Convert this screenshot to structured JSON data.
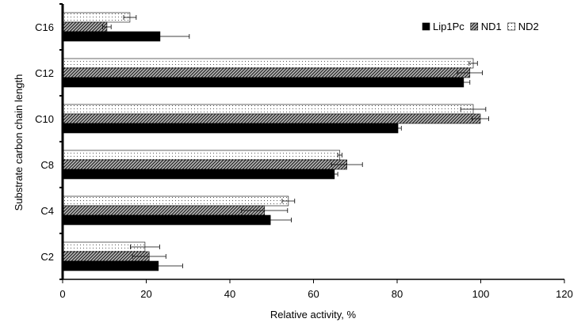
{
  "chart_data": {
    "type": "bar",
    "orientation": "horizontal",
    "title": "",
    "xlabel": "Relative activity, %",
    "ylabel": "Substrate carbon chain length",
    "xlim": [
      0,
      120
    ],
    "xticks": [
      0,
      20,
      40,
      60,
      80,
      100,
      120
    ],
    "grid": false,
    "legend_position": "top-right",
    "categories": [
      "C16",
      "C12",
      "C10",
      "C8",
      "C4",
      "C2"
    ],
    "series": [
      {
        "name": "Lip1Pc",
        "color": "#000000",
        "pattern": "solid",
        "values": [
          23.3,
          95.9,
          80.2,
          65.0,
          49.7,
          22.9
        ],
        "errors": [
          7.0,
          1.5,
          0.8,
          0.8,
          5.0,
          5.8
        ]
      },
      {
        "name": "ND1",
        "color": "#555555",
        "pattern": "hatch",
        "values": [
          10.6,
          97.4,
          99.9,
          68.0,
          48.3,
          20.7
        ],
        "errors": [
          1.0,
          3.0,
          2.0,
          3.7,
          5.5,
          4.0
        ]
      },
      {
        "name": "ND2",
        "color": "#ffffff",
        "pattern": "dots",
        "values": [
          16.1,
          98.2,
          98.2,
          66.3,
          54.0,
          19.7
        ],
        "errors": [
          1.5,
          1.0,
          3.0,
          0.5,
          1.5,
          3.5
        ]
      }
    ]
  }
}
